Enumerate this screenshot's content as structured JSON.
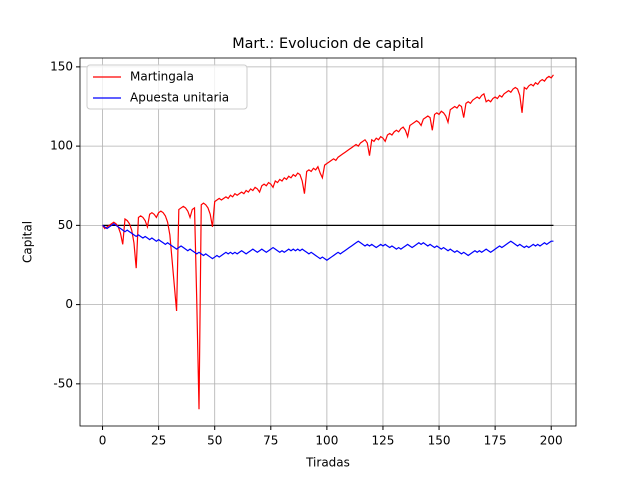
{
  "chart_data": {
    "type": "line",
    "title": "Mart.: Evolucion de capital",
    "x_label": "Tiradas",
    "y_label": "Capital",
    "x": [
      0,
      1,
      2,
      3,
      4,
      5,
      6,
      7,
      8,
      9,
      10,
      11,
      12,
      13,
      14,
      15,
      16,
      17,
      18,
      19,
      20,
      21,
      22,
      23,
      24,
      25,
      26,
      27,
      28,
      29,
      30,
      31,
      32,
      33,
      34,
      35,
      36,
      37,
      38,
      39,
      40,
      41,
      42,
      43,
      44,
      45,
      46,
      47,
      48,
      49,
      50,
      51,
      52,
      53,
      54,
      55,
      56,
      57,
      58,
      59,
      60,
      61,
      62,
      63,
      64,
      65,
      66,
      67,
      68,
      69,
      70,
      71,
      72,
      73,
      74,
      75,
      76,
      77,
      78,
      79,
      80,
      81,
      82,
      83,
      84,
      85,
      86,
      87,
      88,
      89,
      90,
      91,
      92,
      93,
      94,
      95,
      96,
      97,
      98,
      99,
      100,
      101,
      102,
      103,
      104,
      105,
      106,
      107,
      108,
      109,
      110,
      111,
      112,
      113,
      114,
      115,
      116,
      117,
      118,
      119,
      120,
      121,
      122,
      123,
      124,
      125,
      126,
      127,
      128,
      129,
      130,
      131,
      132,
      133,
      134,
      135,
      136,
      137,
      138,
      139,
      140,
      141,
      142,
      143,
      144,
      145,
      146,
      147,
      148,
      149,
      150,
      151,
      152,
      153,
      154,
      155,
      156,
      157,
      158,
      159,
      160,
      161,
      162,
      163,
      164,
      165,
      166,
      167,
      168,
      169,
      170,
      171,
      172,
      173,
      174,
      175,
      176,
      177,
      178,
      179,
      180,
      181,
      182,
      183,
      184,
      185,
      186,
      187,
      188,
      189,
      190,
      191,
      192,
      193,
      194,
      195,
      196,
      197,
      198,
      199,
      200,
      201
    ],
    "series": [
      {
        "name": "Martingala",
        "color": "#ff0000",
        "values": [
          50,
          48,
          49,
          50,
          51,
          52,
          51,
          49,
          45,
          38,
          54,
          53,
          51,
          47,
          39,
          23,
          55,
          56,
          55,
          53,
          49,
          57,
          58,
          57,
          55,
          58,
          59,
          58,
          56,
          52,
          44,
          28,
          12,
          -4,
          60,
          61,
          62,
          61,
          59,
          55,
          60,
          61,
          2,
          -66,
          63,
          64,
          63,
          61,
          57,
          49,
          65,
          66,
          67,
          66,
          67,
          68,
          67,
          69,
          68,
          70,
          69,
          70,
          71,
          70,
          72,
          71,
          73,
          72,
          74,
          73,
          71,
          75,
          76,
          75,
          77,
          76,
          74,
          78,
          77,
          79,
          78,
          80,
          79,
          81,
          80,
          82,
          81,
          83,
          82,
          78,
          70,
          84,
          85,
          84,
          86,
          85,
          87,
          83,
          80,
          88,
          89,
          90,
          91,
          92,
          91,
          93,
          94,
          95,
          96,
          97,
          98,
          99,
          100,
          101,
          100,
          102,
          103,
          104,
          102,
          94,
          104,
          103,
          105,
          104,
          106,
          105,
          103,
          107,
          108,
          107,
          109,
          110,
          109,
          111,
          112,
          110,
          106,
          113,
          114,
          115,
          116,
          115,
          113,
          117,
          118,
          119,
          118,
          110,
          120,
          121,
          120,
          122,
          121,
          119,
          115,
          123,
          124,
          125,
          124,
          126,
          125,
          118,
          127,
          128,
          127,
          129,
          130,
          131,
          130,
          132,
          133,
          128,
          129,
          128,
          130,
          131,
          130,
          132,
          131,
          133,
          134,
          135,
          134,
          136,
          137,
          136,
          132,
          121,
          137,
          136,
          138,
          139,
          138,
          140,
          139,
          141,
          142,
          141,
          143,
          144,
          143,
          145
        ]
      },
      {
        "name": "Apuesta unitaria",
        "color": "#0000ff",
        "values": [
          50,
          49,
          48,
          49,
          50,
          51,
          50,
          49,
          48,
          47,
          46,
          47,
          46,
          45,
          44,
          43,
          44,
          43,
          42,
          43,
          42,
          41,
          42,
          41,
          40,
          41,
          40,
          39,
          38,
          39,
          38,
          37,
          36,
          35,
          36,
          37,
          36,
          35,
          34,
          35,
          34,
          33,
          32,
          33,
          32,
          31,
          32,
          31,
          30,
          29,
          30,
          31,
          30,
          31,
          32,
          33,
          32,
          33,
          32,
          33,
          32,
          33,
          34,
          33,
          32,
          33,
          34,
          35,
          34,
          33,
          34,
          35,
          34,
          33,
          34,
          35,
          36,
          35,
          34,
          33,
          34,
          33,
          34,
          35,
          34,
          35,
          34,
          35,
          34,
          35,
          34,
          33,
          32,
          33,
          32,
          31,
          30,
          29,
          30,
          29,
          28,
          29,
          30,
          31,
          32,
          33,
          32,
          33,
          34,
          35,
          36,
          37,
          38,
          39,
          40,
          39,
          38,
          37,
          38,
          37,
          38,
          37,
          36,
          37,
          38,
          37,
          38,
          37,
          36,
          37,
          36,
          35,
          36,
          35,
          36,
          37,
          38,
          37,
          36,
          37,
          38,
          39,
          38,
          39,
          38,
          37,
          38,
          37,
          36,
          37,
          36,
          35,
          36,
          35,
          34,
          35,
          34,
          33,
          34,
          33,
          32,
          33,
          32,
          31,
          32,
          33,
          34,
          33,
          34,
          33,
          34,
          35,
          34,
          33,
          34,
          35,
          36,
          37,
          36,
          37,
          38,
          39,
          40,
          39,
          38,
          37,
          38,
          37,
          36,
          37,
          36,
          37,
          38,
          37,
          38,
          37,
          38,
          39,
          38,
          39,
          40,
          40
        ]
      }
    ],
    "hlines": [
      {
        "y": 50,
        "xmin": 0,
        "xmax": 201,
        "color": "#000000"
      }
    ],
    "xlim": [
      -10.05,
      211.05
    ],
    "xticks": [
      0,
      25,
      50,
      75,
      100,
      125,
      150,
      175,
      200
    ],
    "ylim": [
      -76.6,
      155.6
    ],
    "yticks": [
      -50,
      0,
      50,
      100,
      150
    ],
    "grid": true,
    "legend": "upper left"
  }
}
